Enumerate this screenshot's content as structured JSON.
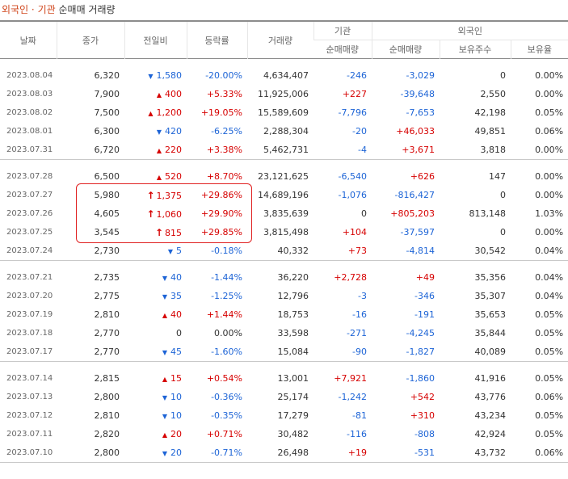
{
  "title": {
    "part1": "외국인 · 기관",
    "part2": "순매매 거래량"
  },
  "headers": {
    "date": "날짜",
    "close": "종가",
    "change": "전일비",
    "rate": "등락률",
    "volume": "거래량",
    "inst": "기관",
    "foreign": "외국인",
    "inst_net": "순매매량",
    "foreign_net": "순매매량",
    "foreign_hold": "보유주수",
    "foreign_ratio": "보유율"
  },
  "colors": {
    "up": "#d60000",
    "down": "#1d64d6",
    "annotation": "#e02020"
  },
  "groups": [
    [
      {
        "date": "2023.08.04",
        "close": "6,320",
        "dir": "down",
        "icon": "down-triangle-icon",
        "sym": "▼",
        "change": "1,580",
        "rate": "-20.00%",
        "volume": "4,634,407",
        "inst": "-246",
        "foreign": "-3,029",
        "hold": "0",
        "ratio": "0.00%"
      },
      {
        "date": "2023.08.03",
        "close": "7,900",
        "dir": "up",
        "icon": "up-triangle-icon",
        "sym": "▲",
        "change": "400",
        "rate": "+5.33%",
        "volume": "11,925,006",
        "inst": "+227",
        "foreign": "-39,648",
        "hold": "2,550",
        "ratio": "0.00%"
      },
      {
        "date": "2023.08.02",
        "close": "7,500",
        "dir": "up",
        "icon": "up-triangle-icon",
        "sym": "▲",
        "change": "1,200",
        "rate": "+19.05%",
        "volume": "15,589,609",
        "inst": "-7,796",
        "foreign": "-7,653",
        "hold": "42,198",
        "ratio": "0.05%"
      },
      {
        "date": "2023.08.01",
        "close": "6,300",
        "dir": "down",
        "icon": "down-triangle-icon",
        "sym": "▼",
        "change": "420",
        "rate": "-6.25%",
        "volume": "2,288,304",
        "inst": "-20",
        "foreign": "+46,033",
        "hold": "49,851",
        "ratio": "0.06%"
      },
      {
        "date": "2023.07.31",
        "close": "6,720",
        "dir": "up",
        "icon": "up-triangle-icon",
        "sym": "▲",
        "change": "220",
        "rate": "+3.38%",
        "volume": "5,462,731",
        "inst": "-4",
        "foreign": "+3,671",
        "hold": "3,818",
        "ratio": "0.00%"
      }
    ],
    [
      {
        "date": "2023.07.28",
        "close": "6,500",
        "dir": "up",
        "icon": "up-triangle-icon",
        "sym": "▲",
        "change": "520",
        "rate": "+8.70%",
        "volume": "23,121,625",
        "inst": "-6,540",
        "foreign": "+626",
        "hold": "147",
        "ratio": "0.00%"
      },
      {
        "date": "2023.07.27",
        "close": "5,980",
        "dir": "limit",
        "icon": "upper-limit-arrow-icon",
        "sym": "↑",
        "change": "1,375",
        "rate": "+29.86%",
        "volume": "14,689,196",
        "inst": "-1,076",
        "foreign": "-816,427",
        "hold": "0",
        "ratio": "0.00%"
      },
      {
        "date": "2023.07.26",
        "close": "4,605",
        "dir": "limit",
        "icon": "upper-limit-arrow-icon",
        "sym": "↑",
        "change": "1,060",
        "rate": "+29.90%",
        "volume": "3,835,639",
        "inst": "0",
        "foreign": "+805,203",
        "hold": "813,148",
        "ratio": "1.03%"
      },
      {
        "date": "2023.07.25",
        "close": "3,545",
        "dir": "limit",
        "icon": "upper-limit-arrow-icon",
        "sym": "↑",
        "change": "815",
        "rate": "+29.85%",
        "volume": "3,815,498",
        "inst": "+104",
        "foreign": "-37,597",
        "hold": "0",
        "ratio": "0.00%"
      },
      {
        "date": "2023.07.24",
        "close": "2,730",
        "dir": "down",
        "icon": "down-triangle-icon",
        "sym": "▼",
        "change": "5",
        "rate": "-0.18%",
        "volume": "40,332",
        "inst": "+73",
        "foreign": "-4,814",
        "hold": "30,542",
        "ratio": "0.04%"
      }
    ],
    [
      {
        "date": "2023.07.21",
        "close": "2,735",
        "dir": "down",
        "icon": "down-triangle-icon",
        "sym": "▼",
        "change": "40",
        "rate": "-1.44%",
        "volume": "36,220",
        "inst": "+2,728",
        "foreign": "+49",
        "hold": "35,356",
        "ratio": "0.04%"
      },
      {
        "date": "2023.07.20",
        "close": "2,775",
        "dir": "down",
        "icon": "down-triangle-icon",
        "sym": "▼",
        "change": "35",
        "rate": "-1.25%",
        "volume": "12,796",
        "inst": "-3",
        "foreign": "-346",
        "hold": "35,307",
        "ratio": "0.04%"
      },
      {
        "date": "2023.07.19",
        "close": "2,810",
        "dir": "up",
        "icon": "up-triangle-icon",
        "sym": "▲",
        "change": "40",
        "rate": "+1.44%",
        "volume": "18,753",
        "inst": "-16",
        "foreign": "-191",
        "hold": "35,653",
        "ratio": "0.05%"
      },
      {
        "date": "2023.07.18",
        "close": "2,770",
        "dir": "flat",
        "icon": "",
        "sym": "",
        "change": "0",
        "rate": "0.00%",
        "volume": "33,598",
        "inst": "-271",
        "foreign": "-4,245",
        "hold": "35,844",
        "ratio": "0.05%"
      },
      {
        "date": "2023.07.17",
        "close": "2,770",
        "dir": "down",
        "icon": "down-triangle-icon",
        "sym": "▼",
        "change": "45",
        "rate": "-1.60%",
        "volume": "15,084",
        "inst": "-90",
        "foreign": "-1,827",
        "hold": "40,089",
        "ratio": "0.05%"
      }
    ],
    [
      {
        "date": "2023.07.14",
        "close": "2,815",
        "dir": "up",
        "icon": "up-triangle-icon",
        "sym": "▲",
        "change": "15",
        "rate": "+0.54%",
        "volume": "13,001",
        "inst": "+7,921",
        "foreign": "-1,860",
        "hold": "41,916",
        "ratio": "0.05%"
      },
      {
        "date": "2023.07.13",
        "close": "2,800",
        "dir": "down",
        "icon": "down-triangle-icon",
        "sym": "▼",
        "change": "10",
        "rate": "-0.36%",
        "volume": "25,174",
        "inst": "-1,242",
        "foreign": "+542",
        "hold": "43,776",
        "ratio": "0.06%"
      },
      {
        "date": "2023.07.12",
        "close": "2,810",
        "dir": "down",
        "icon": "down-triangle-icon",
        "sym": "▼",
        "change": "10",
        "rate": "-0.35%",
        "volume": "17,279",
        "inst": "-81",
        "foreign": "+310",
        "hold": "43,234",
        "ratio": "0.05%"
      },
      {
        "date": "2023.07.11",
        "close": "2,820",
        "dir": "up",
        "icon": "up-triangle-icon",
        "sym": "▲",
        "change": "20",
        "rate": "+0.71%",
        "volume": "30,482",
        "inst": "-116",
        "foreign": "-808",
        "hold": "42,924",
        "ratio": "0.05%"
      },
      {
        "date": "2023.07.10",
        "close": "2,800",
        "dir": "down",
        "icon": "down-triangle-icon",
        "sym": "▼",
        "change": "20",
        "rate": "-0.71%",
        "volume": "26,498",
        "inst": "+19",
        "foreign": "-531",
        "hold": "43,732",
        "ratio": "0.06%"
      }
    ]
  ]
}
